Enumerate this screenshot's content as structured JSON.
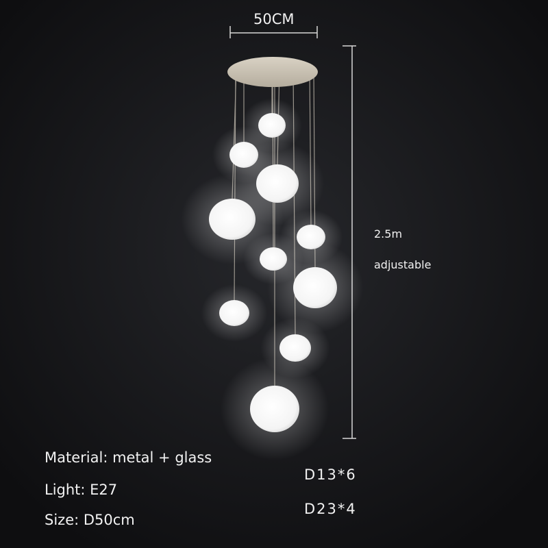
{
  "dimensions": {
    "width_label": "50CM",
    "height_label": "2.5m",
    "height_note": "adjustable"
  },
  "specs": [
    "Material: metal + glass",
    "Light: E27",
    "Size: D50cm"
  ],
  "globe_sizes": [
    "D13*6",
    "D23*4"
  ],
  "colors": {
    "background": "#141416",
    "canopy": "#cfc7b8",
    "glass": "#ffffff",
    "text": "#f2f2f2"
  }
}
